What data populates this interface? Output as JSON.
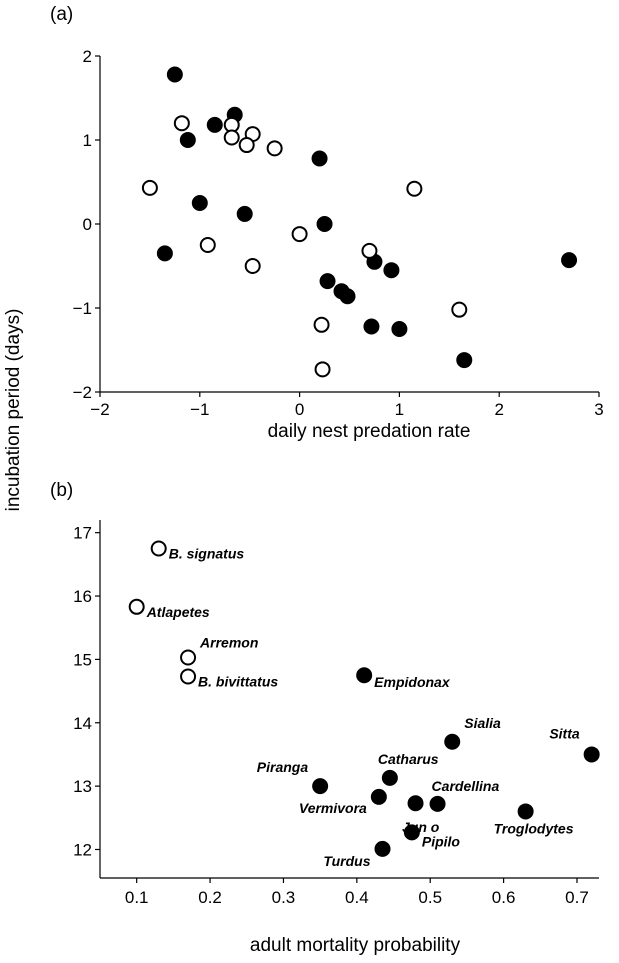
{
  "chart_data": [
    {
      "panel": "(a)",
      "type": "scatter",
      "xlabel": "daily nest predation rate",
      "ylabel": "incubation period (days)",
      "xlim": [
        -2,
        3
      ],
      "ylim": [
        -2,
        2
      ],
      "xticks": [
        "−2",
        "−1",
        "0",
        "1",
        "2",
        "3"
      ],
      "yticks": [
        "−2",
        "−1",
        "0",
        "1",
        "2"
      ],
      "series": [
        {
          "fill": "#000000",
          "points": [
            [
              -1.25,
              1.78
            ],
            [
              -0.65,
              1.3
            ],
            [
              -0.85,
              1.18
            ],
            [
              -1.12,
              1.0
            ],
            [
              0.2,
              0.78
            ],
            [
              -1.0,
              0.25
            ],
            [
              -0.55,
              0.12
            ],
            [
              0.25,
              0.0
            ],
            [
              -1.35,
              -0.35
            ],
            [
              0.75,
              -0.45
            ],
            [
              0.92,
              -0.55
            ],
            [
              0.28,
              -0.68
            ],
            [
              0.42,
              -0.8
            ],
            [
              0.48,
              -0.86
            ],
            [
              0.72,
              -1.22
            ],
            [
              1.0,
              -1.25
            ],
            [
              1.65,
              -1.62
            ],
            [
              2.7,
              -0.43
            ]
          ]
        },
        {
          "fill": "#ffffff",
          "points": [
            [
              -1.18,
              1.2
            ],
            [
              -0.68,
              1.18
            ],
            [
              -0.68,
              1.03
            ],
            [
              -0.47,
              1.07
            ],
            [
              -0.53,
              0.94
            ],
            [
              -0.25,
              0.9
            ],
            [
              1.15,
              0.42
            ],
            [
              -1.5,
              0.43
            ],
            [
              0.0,
              -0.12
            ],
            [
              -0.92,
              -0.25
            ],
            [
              0.7,
              -0.32
            ],
            [
              -0.47,
              -0.5
            ],
            [
              0.22,
              -1.2
            ],
            [
              1.6,
              -1.02
            ],
            [
              0.23,
              -1.73
            ]
          ]
        }
      ]
    },
    {
      "panel": "(b)",
      "type": "scatter",
      "xlabel": "adult mortality probability",
      "ylabel": "incubation period (days)",
      "xlim": [
        0.05,
        0.73
      ],
      "ylim": [
        11.55,
        17.2
      ],
      "xticks": [
        "0.1",
        "0.2",
        "0.3",
        "0.4",
        "0.5",
        "0.6",
        "0.7"
      ],
      "yticks": [
        "12",
        "13",
        "14",
        "15",
        "16",
        "17"
      ],
      "points": [
        {
          "x": 0.13,
          "y": 16.75,
          "fill": "#ffffff",
          "label": "B. signatus"
        },
        {
          "x": 0.1,
          "y": 15.83,
          "fill": "#ffffff",
          "label": "Atlapetes"
        },
        {
          "x": 0.17,
          "y": 15.03,
          "fill": "#ffffff",
          "label": "Arremon"
        },
        {
          "x": 0.17,
          "y": 14.73,
          "fill": "#ffffff",
          "label": "B. bivittatus"
        },
        {
          "x": 0.41,
          "y": 14.75,
          "fill": "#000000",
          "label": "Empidonax"
        },
        {
          "x": 0.53,
          "y": 13.7,
          "fill": "#000000",
          "label": "Sialia"
        },
        {
          "x": 0.72,
          "y": 13.5,
          "fill": "#000000",
          "label": "Sitta"
        },
        {
          "x": 0.35,
          "y": 13.0,
          "fill": "#000000",
          "label": "Piranga"
        },
        {
          "x": 0.445,
          "y": 13.13,
          "fill": "#000000",
          "label": "Catharus"
        },
        {
          "x": 0.43,
          "y": 12.83,
          "fill": "#000000",
          "label": "Vermivora"
        },
        {
          "x": 0.48,
          "y": 12.73,
          "fill": "#000000",
          "label": ""
        },
        {
          "x": 0.51,
          "y": 12.72,
          "fill": "#000000",
          "label": "Cardellina"
        },
        {
          "x": 0.63,
          "y": 12.6,
          "fill": "#000000",
          "label": "Troglodytes"
        },
        {
          "x": 0.475,
          "y": 12.27,
          "fill": "#000000",
          "label": "Pipilo"
        },
        {
          "x": 0.435,
          "y": 12.01,
          "fill": "#000000",
          "label": "Turdus"
        }
      ],
      "annotation": "Jun o"
    }
  ]
}
